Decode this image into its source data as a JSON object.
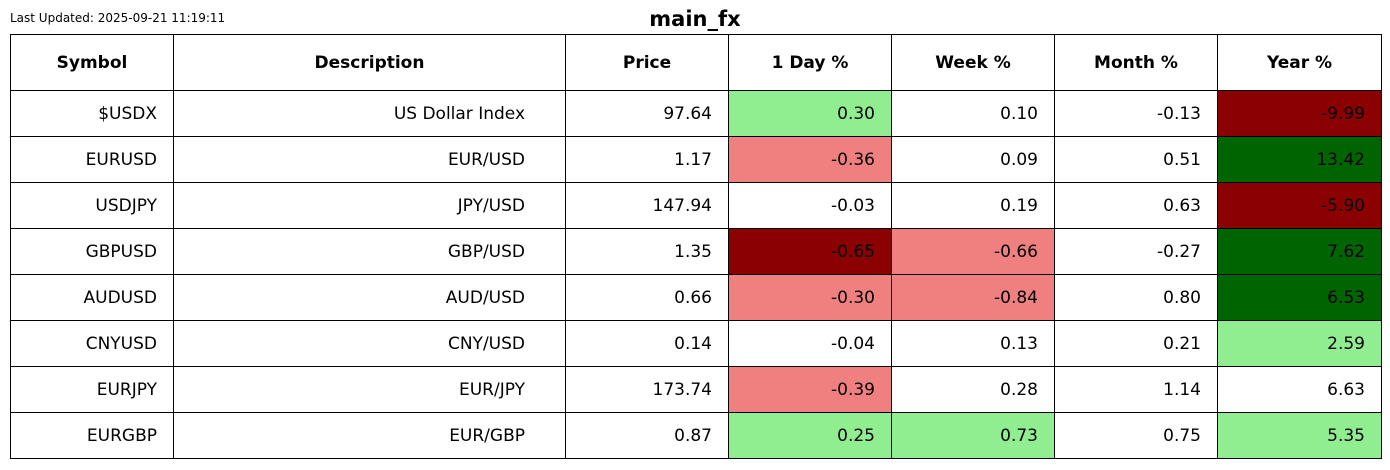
{
  "header": {
    "last_updated": "Last Updated: 2025-09-21 11:19:11",
    "title": "main_fx"
  },
  "colors": {
    "strong_red": "#8b0000",
    "light_red": "#f08080",
    "light_green": "#90ee90",
    "strong_green": "#006400",
    "neutral": "#ffffff"
  },
  "table": {
    "columns": [
      "Symbol",
      "Description",
      "Price",
      "1 Day %",
      "Week %",
      "Month %",
      "Year %"
    ],
    "rows": [
      {
        "symbol": "$USDX",
        "description": "US Dollar Index",
        "price": "97.64",
        "day": "0.30",
        "day_color": "light_green",
        "week": "0.10",
        "week_color": "neutral",
        "month": "-0.13",
        "month_color": "neutral",
        "year": "-9.99",
        "year_color": "strong_red"
      },
      {
        "symbol": "EURUSD",
        "description": "EUR/USD",
        "price": "1.17",
        "day": "-0.36",
        "day_color": "light_red",
        "week": "0.09",
        "week_color": "neutral",
        "month": "0.51",
        "month_color": "neutral",
        "year": "13.42",
        "year_color": "strong_green"
      },
      {
        "symbol": "USDJPY",
        "description": "JPY/USD",
        "price": "147.94",
        "day": "-0.03",
        "day_color": "neutral",
        "week": "0.19",
        "week_color": "neutral",
        "month": "0.63",
        "month_color": "neutral",
        "year": "-5.90",
        "year_color": "strong_red"
      },
      {
        "symbol": "GBPUSD",
        "description": "GBP/USD",
        "price": "1.35",
        "day": "-0.65",
        "day_color": "strong_red",
        "week": "-0.66",
        "week_color": "light_red",
        "month": "-0.27",
        "month_color": "neutral",
        "year": "7.62",
        "year_color": "strong_green"
      },
      {
        "symbol": "AUDUSD",
        "description": "AUD/USD",
        "price": "0.66",
        "day": "-0.30",
        "day_color": "light_red",
        "week": "-0.84",
        "week_color": "light_red",
        "month": "0.80",
        "month_color": "neutral",
        "year": "6.53",
        "year_color": "strong_green"
      },
      {
        "symbol": "CNYUSD",
        "description": "CNY/USD",
        "price": "0.14",
        "day": "-0.04",
        "day_color": "neutral",
        "week": "0.13",
        "week_color": "neutral",
        "month": "0.21",
        "month_color": "neutral",
        "year": "2.59",
        "year_color": "light_green"
      },
      {
        "symbol": "EURJPY",
        "description": "EUR/JPY",
        "price": "173.74",
        "day": "-0.39",
        "day_color": "light_red",
        "week": "0.28",
        "week_color": "neutral",
        "month": "1.14",
        "month_color": "neutral",
        "year": "6.63",
        "year_color": "neutral"
      },
      {
        "symbol": "EURGBP",
        "description": "EUR/GBP",
        "price": "0.87",
        "day": "0.25",
        "day_color": "light_green",
        "week": "0.73",
        "week_color": "light_green",
        "month": "0.75",
        "month_color": "neutral",
        "year": "5.35",
        "year_color": "light_green"
      }
    ]
  }
}
